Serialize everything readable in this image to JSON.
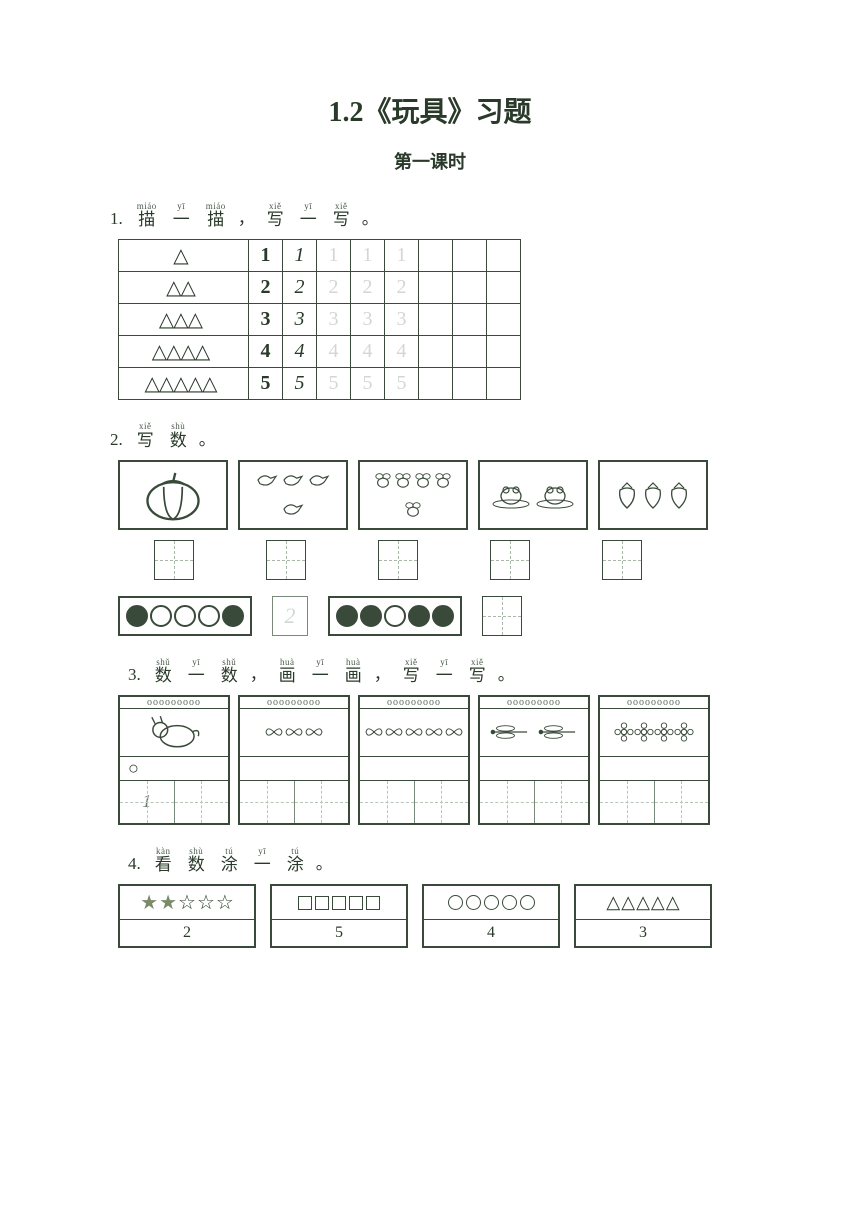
{
  "title": "1.2《玩具》习题",
  "subtitle": "第一课时",
  "q1": {
    "number": "1.",
    "pinyin": [
      "miáo",
      "yī",
      "miáo",
      "xiě",
      "yī",
      "xiě"
    ],
    "hanzi": [
      "描",
      "一",
      "描",
      "写",
      "一",
      "写"
    ],
    "punct": [
      "，",
      "。"
    ],
    "rows": [
      {
        "triangles": "△",
        "n": "1",
        "hand": "1",
        "dots": [
          "1",
          "1",
          "1"
        ]
      },
      {
        "triangles": "△△",
        "n": "2",
        "hand": "2",
        "dots": [
          "2",
          "2",
          "2"
        ]
      },
      {
        "triangles": "△△△",
        "n": "3",
        "hand": "3",
        "dots": [
          "3",
          "3",
          "3"
        ]
      },
      {
        "triangles": "△△△△",
        "n": "4",
        "hand": "4",
        "dots": [
          "4",
          "4",
          "4"
        ]
      },
      {
        "triangles": "△△△△△",
        "n": "5",
        "hand": "5",
        "dots": [
          "5",
          "5",
          "5"
        ]
      }
    ],
    "blank_cols": 3
  },
  "q2": {
    "number": "2.",
    "pinyin": [
      "xiě",
      "shù"
    ],
    "hanzi": [
      "写",
      "数"
    ],
    "punct": "。",
    "pics": [
      {
        "desc": "pumpkin",
        "count": 1
      },
      {
        "desc": "birds",
        "count": 4
      },
      {
        "desc": "bees",
        "count": 5
      },
      {
        "desc": "frogs",
        "count": 2
      },
      {
        "desc": "strawberries",
        "count": 3
      }
    ],
    "circles1": [
      true,
      false,
      false,
      false,
      true
    ],
    "hint": "2",
    "circles2": [
      true,
      true,
      false,
      true,
      true
    ]
  },
  "q3": {
    "number": "3.",
    "pinyin": [
      "shǔ",
      "yī",
      "shǔ",
      "huà",
      "yī",
      "huà",
      "xiě",
      "yī",
      "xiě"
    ],
    "hanzi": [
      "数",
      "一",
      "数",
      "画",
      "一",
      "画",
      "写",
      "一",
      "写"
    ],
    "punct": [
      "，",
      "，",
      "。"
    ],
    "cards": [
      {
        "desc": "dog",
        "count": 1,
        "example_circle": "○",
        "example_num": "1"
      },
      {
        "desc": "butterflies",
        "count": 3
      },
      {
        "desc": "butterflies",
        "count": 5
      },
      {
        "desc": "dragonflies",
        "count": 2
      },
      {
        "desc": "flowers",
        "count": 4
      }
    ]
  },
  "q4": {
    "number": "4.",
    "pinyin": [
      "kàn",
      "shù",
      "tú",
      "yī",
      "tú"
    ],
    "hanzi": [
      "看",
      "数",
      "涂",
      "一",
      "涂"
    ],
    "punct": "。",
    "cards": [
      {
        "shape": "star",
        "filled": 2,
        "total": 5,
        "num": "2"
      },
      {
        "shape": "square",
        "filled": 0,
        "total": 5,
        "num": "5"
      },
      {
        "shape": "circle",
        "filled": 0,
        "total": 5,
        "num": "4"
      },
      {
        "shape": "triangle",
        "filled": 0,
        "total": 5,
        "num": "3"
      }
    ]
  },
  "colors": {
    "ink": "#2a3a2a",
    "faint": "#9aaa9a",
    "border": "#3a4a3a"
  }
}
